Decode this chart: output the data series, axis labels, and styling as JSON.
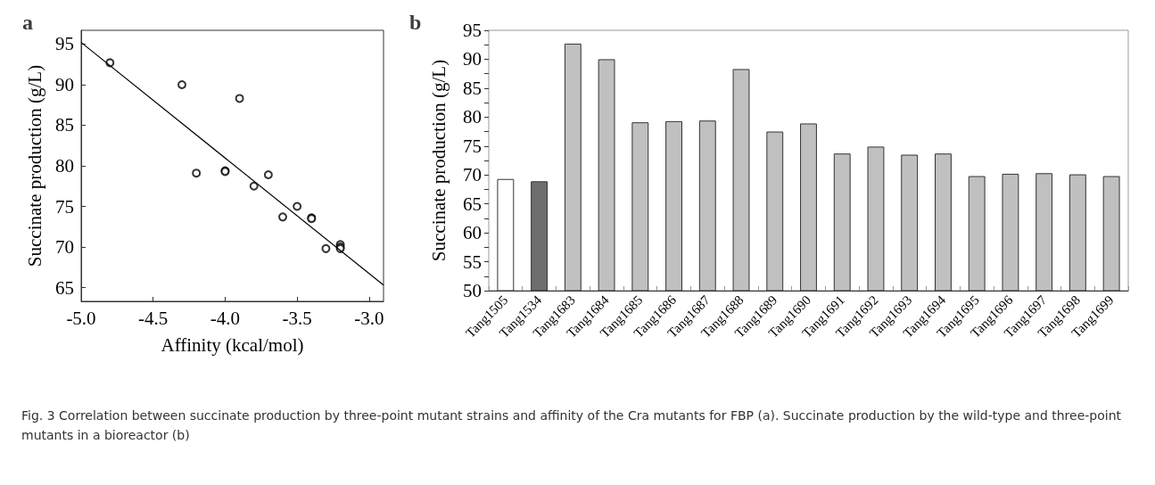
{
  "chart_data": [
    {
      "type": "scatter",
      "title": "a",
      "xlabel": "Affinity (kcal/mol)",
      "ylabel": "Succinate production (g/L)",
      "xlim": [
        -5.0,
        -2.9
      ],
      "xticks": [
        {
          "value": -5.0,
          "label": "-5.0"
        },
        -4.5,
        {
          "value": -4.0,
          "label": "-4.0"
        },
        -3.5,
        {
          "value": -3.0,
          "label": "-3.0"
        }
      ],
      "ylim": [
        63.3,
        96.7
      ],
      "yticks": [
        65,
        70,
        75,
        80,
        85,
        90,
        95
      ],
      "grid": false,
      "series": [
        {
          "type": "scatter",
          "marker": "circle",
          "color": "#000000",
          "x": [
            -4.8,
            -4.3,
            -3.9,
            -4.2,
            -4.0,
            -4.0,
            -3.7,
            -3.8,
            -3.5,
            -3.6,
            -3.4,
            -3.4,
            -3.3,
            -3.2,
            -3.2,
            -3.2
          ],
          "values": [
            92.7,
            90.0,
            88.3,
            79.1,
            79.4,
            79.3,
            78.9,
            77.5,
            75.0,
            73.7,
            73.6,
            73.5,
            69.8,
            70.3,
            70.0,
            69.8
          ]
        },
        {
          "type": "line",
          "marker": "none",
          "line_style": "solid",
          "color": "#000000",
          "x": [
            -5.0,
            -2.9
          ],
          "values": [
            95.2,
            65.3
          ]
        }
      ],
      "annotations": [
        "Fig. 3  Correlation between succinate production by three-point mutant strains and affinity of the Cra mutants for FBP (a). Succinate production by the wild-type and three-point mutants in a bioreactor (b)"
      ]
    },
    {
      "type": "bar",
      "title": "b",
      "ylabel": "Succinate production (g/L)",
      "categories": [
        "Tang1505",
        "Tang1534",
        "Tang1683",
        "Tang1684",
        "Tang1685",
        "Tang1686",
        "Tang1687",
        "Tang1688",
        "Tang1689",
        "Tang1690",
        "Tang1691",
        "Tang1692",
        "Tang1693",
        "Tang1694",
        "Tang1695",
        "Tang1696",
        "Tang1697",
        "Tang1698",
        "Tang1699"
      ],
      "values": [
        69.3,
        68.9,
        92.7,
        90.0,
        79.1,
        79.3,
        79.4,
        88.3,
        77.5,
        78.9,
        73.7,
        74.9,
        73.5,
        73.7,
        69.8,
        70.2,
        70.3,
        70.1,
        69.8
      ],
      "colors": [
        "#ffffff",
        "#6e6e6e",
        "#c0c0c0",
        "#c0c0c0",
        "#c0c0c0",
        "#c0c0c0",
        "#c0c0c0",
        "#c0c0c0",
        "#c0c0c0",
        "#c0c0c0",
        "#c0c0c0",
        "#c0c0c0",
        "#c0c0c0",
        "#c0c0c0",
        "#c0c0c0",
        "#c0c0c0",
        "#c0c0c0",
        "#c0c0c0",
        "#c0c0c0"
      ],
      "ylim": [
        50,
        95
      ],
      "yticks": [
        50,
        {
          "value": 52.5,
          "label": null
        },
        55,
        {
          "value": 57.5,
          "label": null
        },
        60,
        {
          "value": 62.5,
          "label": null
        },
        65,
        {
          "value": 67.5,
          "label": null
        },
        70,
        {
          "value": 72.5,
          "label": null
        },
        75,
        {
          "value": 77.5,
          "label": null
        },
        80,
        {
          "value": 82.5,
          "label": null
        },
        85,
        {
          "value": 87.5,
          "label": null
        },
        90,
        {
          "value": 92.5,
          "label": null
        },
        95
      ],
      "grid": false
    }
  ]
}
